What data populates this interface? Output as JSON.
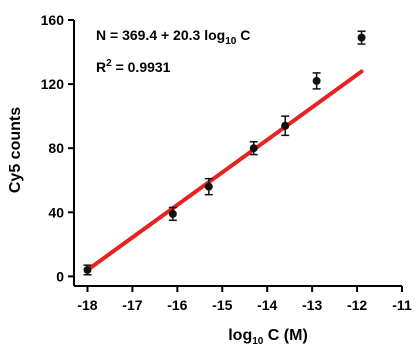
{
  "chart_data": {
    "type": "scatter",
    "title": "",
    "xlabel": {
      "prefix": "log",
      "sub": "10",
      "suffix": " C  (M)"
    },
    "ylabel": "Cy5 counts",
    "xlim": [
      -18.3,
      -11
    ],
    "ylim": [
      -6,
      160
    ],
    "xticks": [
      -18,
      -17,
      -16,
      -15,
      -14,
      -13,
      -12,
      -11
    ],
    "yticks": [
      0,
      40,
      80,
      120,
      160
    ],
    "x_tick_labels": [
      "-18",
      "-17",
      "-16",
      "-15",
      "-14",
      "-13",
      "-12",
      "-11"
    ],
    "y_tick_labels": [
      "0",
      "40",
      "80",
      "120",
      "160"
    ],
    "grid": false,
    "points": [
      {
        "x": -18.0,
        "y": 4,
        "err": 3
      },
      {
        "x": -16.1,
        "y": 39,
        "err": 4
      },
      {
        "x": -15.3,
        "y": 56,
        "err": 5
      },
      {
        "x": -14.3,
        "y": 80,
        "err": 4
      },
      {
        "x": -13.6,
        "y": 94,
        "err": 6
      },
      {
        "x": -12.9,
        "y": 122,
        "err": 5
      },
      {
        "x": -11.9,
        "y": 149,
        "err": 4
      }
    ],
    "fit_line": {
      "color": "#e82222",
      "x_start": -18.0,
      "x_end": -11.9,
      "slope": 20.3,
      "intercept": 369.4
    },
    "marker_color": "#111111",
    "annotations": {
      "equation": {
        "prefix": "N = 369.4 + 20.3 log",
        "sub": "10",
        "suffix": " C"
      },
      "r_squared": {
        "prefix": "R",
        "sup": "2",
        "suffix": " = 0.9931"
      }
    }
  }
}
